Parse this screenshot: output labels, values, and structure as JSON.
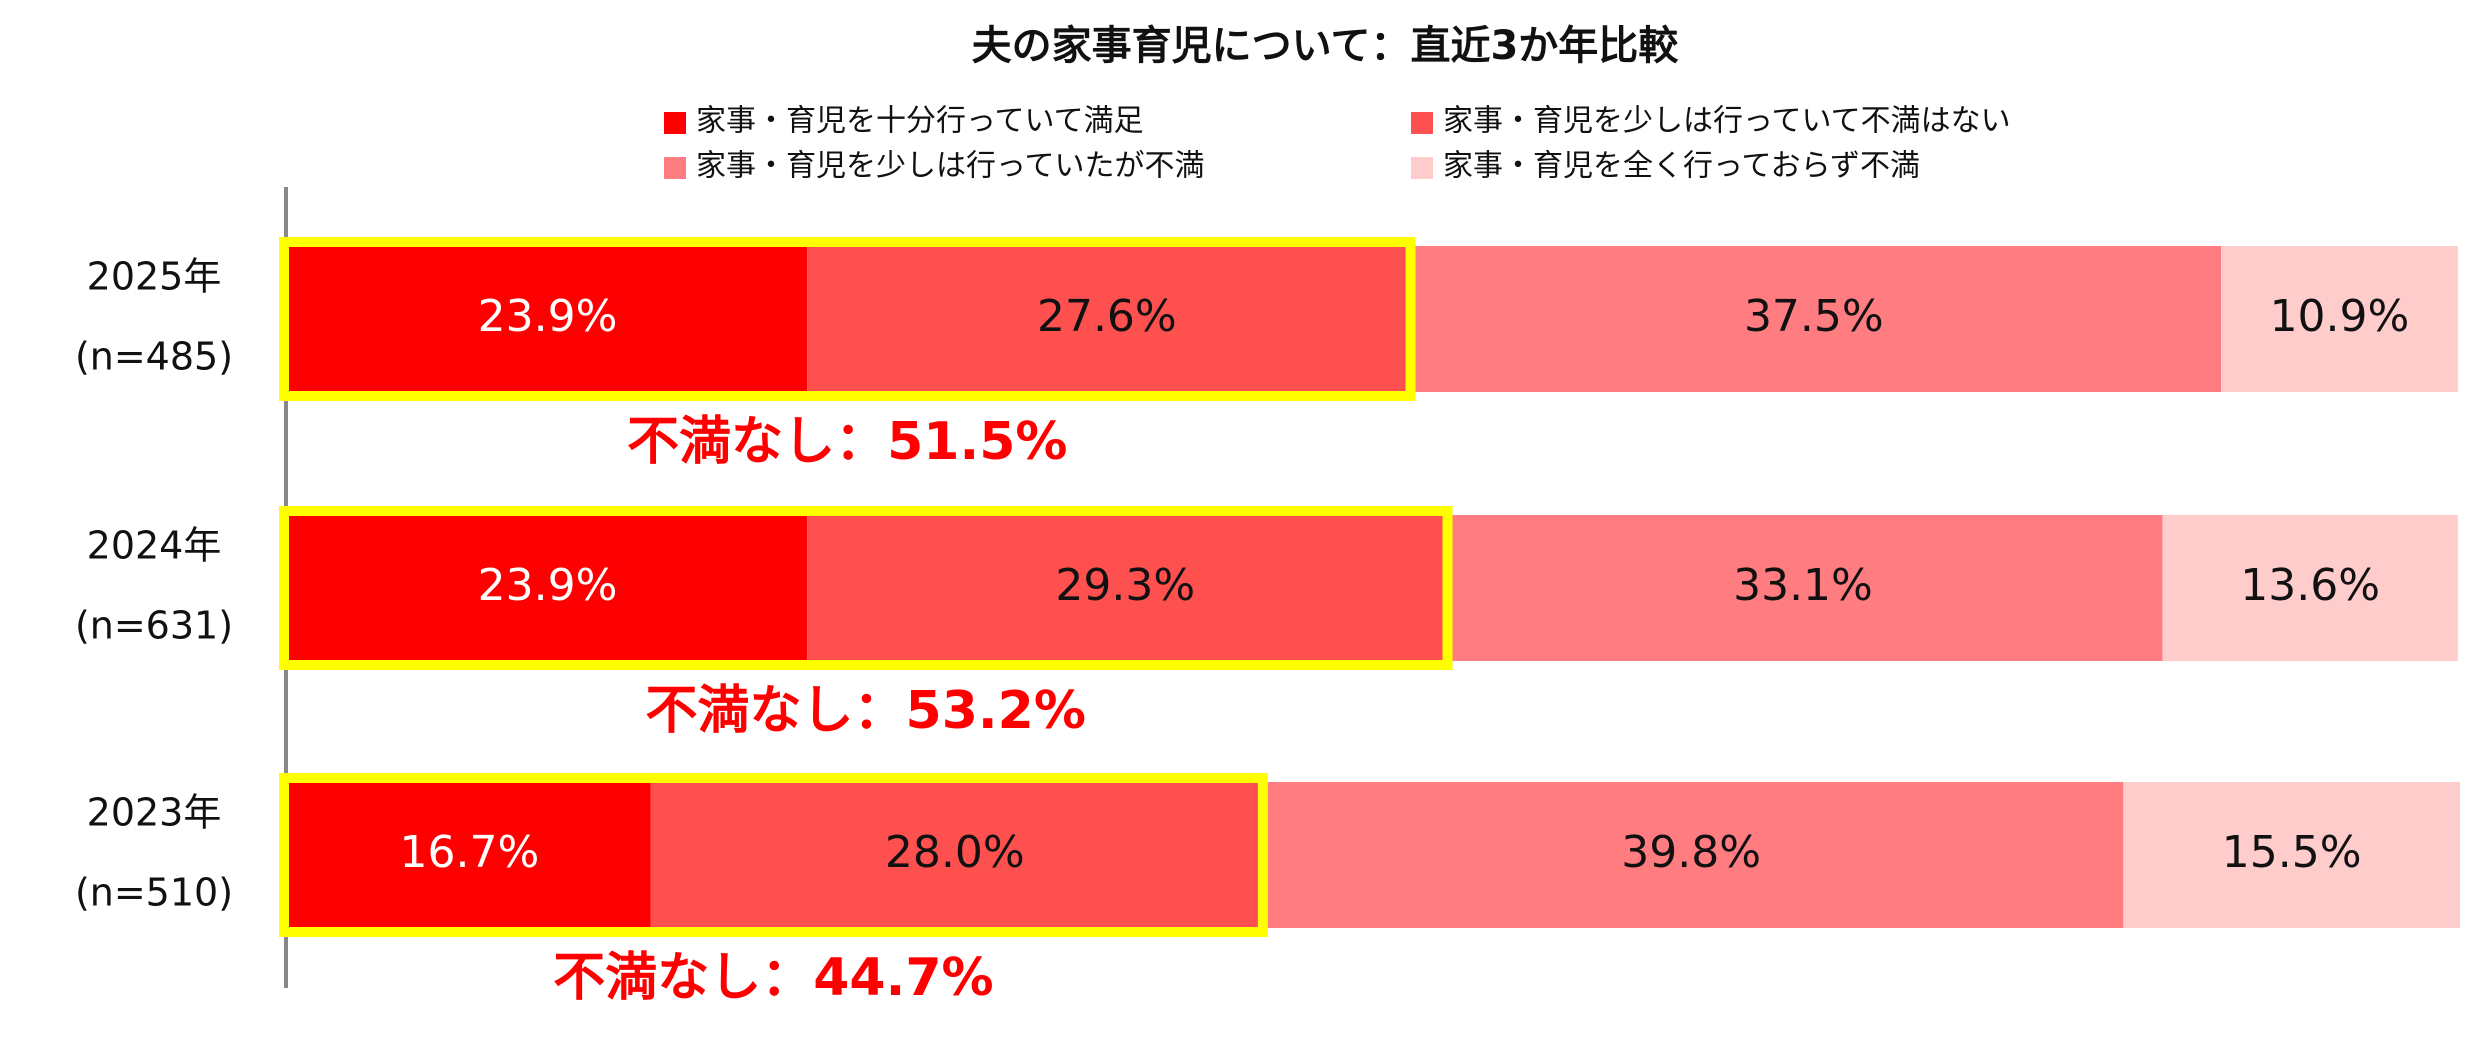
{
  "chart_data": {
    "type": "stacked-barh",
    "title": "夫の家事育児について：直近3か年比較",
    "categories": [
      "2025年",
      "2024年",
      "2023年"
    ],
    "sample_sizes": [
      "(n=485)",
      "(n=631)",
      "(n=510)"
    ],
    "xlim": [
      0,
      100
    ],
    "series": [
      {
        "name": "家事・育児を十分行っていて満足",
        "color": "#ff0000",
        "values": [
          23.9,
          23.9,
          16.7
        ],
        "value_labels": [
          "23.9%",
          "23.9%",
          "16.7%"
        ]
      },
      {
        "name": "家事・育児を少しは行っていて不満はない",
        "color": "#ff5050",
        "values": [
          27.6,
          29.3,
          28.0
        ],
        "value_labels": [
          "27.6%",
          "29.3%",
          "28.0%"
        ]
      },
      {
        "name": "家事・育児を少しは行っていたが不満",
        "color": "#ff7c80",
        "values": [
          37.5,
          33.1,
          39.8
        ],
        "value_labels": [
          "37.5%",
          "33.1%",
          "39.8%"
        ]
      },
      {
        "name": "家事・育児を全く行っておらず不満",
        "color": "#ffcccc",
        "values": [
          10.9,
          13.6,
          15.5
        ],
        "value_labels": [
          "10.9%",
          "13.6%",
          "15.5%"
        ]
      }
    ],
    "annotations": [
      "不満なし：51.5%",
      "不満なし：53.2%",
      "不満なし：44.7%"
    ],
    "highlight_color": "#ffff00",
    "annotation_color": "#ff0000"
  }
}
